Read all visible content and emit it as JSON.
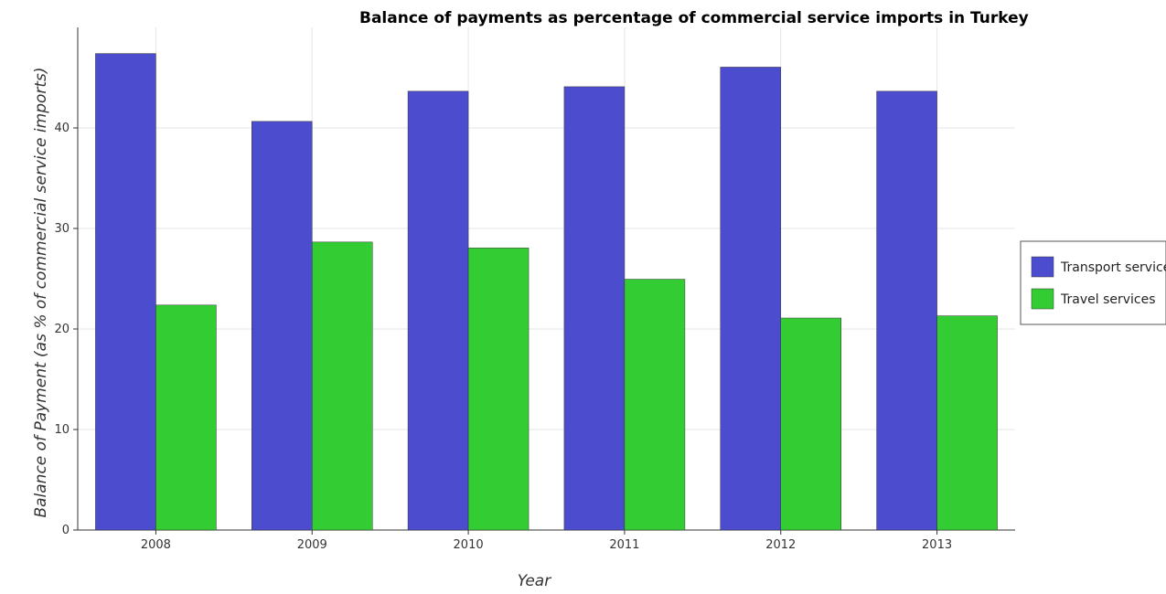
{
  "chart_data": {
    "type": "bar",
    "title": "Balance of payments as percentage of commercial service imports in Turkey",
    "xlabel": "Year",
    "ylabel": "Balance of Payment (as % of commercial service imports)",
    "categories": [
      "2008",
      "2009",
      "2010",
      "2011",
      "2012",
      "2013"
    ],
    "series": [
      {
        "name": "Transport services",
        "color": "#4c4ccf",
        "values": [
          47.4,
          40.65,
          43.65,
          44.1,
          46.05,
          43.65
        ]
      },
      {
        "name": "Travel services",
        "color": "#33cc33",
        "values": [
          22.38,
          28.65,
          28.06,
          24.95,
          21.09,
          21.31
        ]
      }
    ],
    "ylim": [
      0,
      50
    ],
    "yticks": [
      0,
      10,
      20,
      30,
      40
    ],
    "grid": true,
    "legend": "right"
  }
}
